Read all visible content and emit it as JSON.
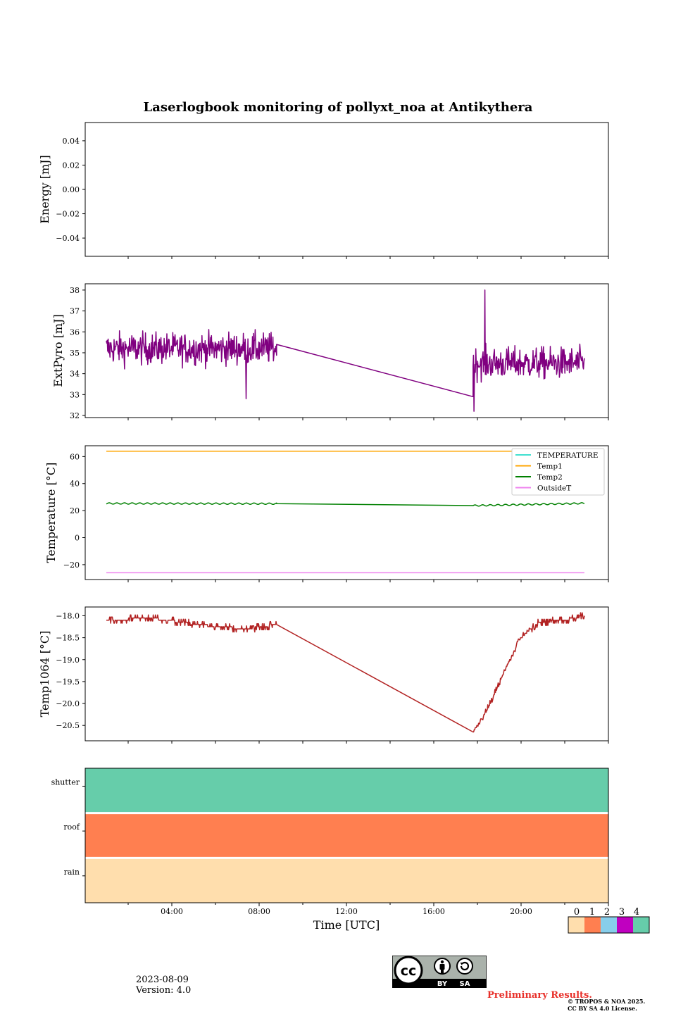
{
  "figure": {
    "title": "Laserlogbook monitoring of pollyxt_noa at Antikythera",
    "date": "2023-08-09",
    "version": "Version: 4.0",
    "preliminary": "Preliminary Results.",
    "copyright_line1": "© TROPOS & NOA 2025.",
    "copyright_line2": "CC BY SA 4.0 License.",
    "cc_logo": {
      "cc": "cc",
      "by": "BY",
      "sa": "SA"
    }
  },
  "chart_data": [
    {
      "id": "energy",
      "type": "line",
      "title": "Laserlogbook monitoring of pollyxt_noa at Antikythera",
      "ylabel": "Energy [mJ]",
      "xlabel": "",
      "ylim": [
        -0.055,
        0.055
      ],
      "yticks": [
        0.04,
        0.02,
        0.0,
        -0.02,
        -0.04
      ],
      "ytick_labels": [
        "0.04",
        "0.02",
        "0.00",
        "−0.02",
        "−0.04"
      ],
      "series": []
    },
    {
      "id": "extpyro",
      "type": "line",
      "ylabel": "ExtPyro [mJ]",
      "xlabel": "",
      "ylim": [
        31.9,
        38.3
      ],
      "yticks": [
        38,
        37,
        36,
        35,
        34,
        33,
        32
      ],
      "ytick_labels": [
        "38",
        "37",
        "36",
        "35",
        "34",
        "33",
        "32"
      ],
      "series": [
        {
          "color": "#800080",
          "segments": [
            {
              "x": [
                1.0,
                8.8
              ],
              "mean": 35.2,
              "amp": 0.8,
              "noise": true
            },
            {
              "x": [
                8.8,
                17.8
              ],
              "y": [
                35.4,
                32.9
              ],
              "noise": false
            },
            {
              "x": [
                17.8,
                22.9
              ],
              "mean": 34.5,
              "amp": 0.8,
              "noise": true
            }
          ],
          "peaks": [
            {
              "x": 18.35,
              "y": 38.0
            },
            {
              "x": 17.85,
              "y": 32.2
            },
            {
              "x": 7.4,
              "y": 32.8
            }
          ]
        }
      ]
    },
    {
      "id": "temperature",
      "type": "line",
      "ylabel": "Temperature [°C]",
      "xlabel": "",
      "ylim": [
        -31,
        68
      ],
      "yticks": [
        60,
        40,
        20,
        0,
        -20
      ],
      "ytick_labels": [
        "60",
        "40",
        "20",
        "0",
        "−20"
      ],
      "legend": {
        "placement": "upper-right"
      },
      "series": [
        {
          "name": "TEMPERATURE",
          "color": "#40e0d0",
          "x": [],
          "y": []
        },
        {
          "name": "Temp1",
          "color": "#ffa500",
          "x": [
            1.0,
            22.9
          ],
          "y": [
            64,
            64
          ]
        },
        {
          "name": "Temp2",
          "color": "#008000",
          "x": [
            1.0,
            8.8,
            17.8,
            22.9
          ],
          "y": [
            25.3,
            25.1,
            23.7,
            25.4
          ],
          "noise": true
        },
        {
          "name": "OutsideT",
          "color": "#ee82ee",
          "x": [
            1.0,
            22.9
          ],
          "y": [
            -26,
            -26
          ]
        }
      ]
    },
    {
      "id": "temp1064",
      "type": "line",
      "ylabel": "Temp1064 [°C]",
      "xlabel": "",
      "ylim": [
        -20.85,
        -17.8
      ],
      "yticks": [
        -18.0,
        -18.5,
        -19.0,
        -19.5,
        -20.0,
        -20.5
      ],
      "ytick_labels": [
        "−18.0",
        "−18.5",
        "−19.0",
        "−19.5",
        "−20.0",
        "−20.5"
      ],
      "series": [
        {
          "color": "#b22222",
          "points": [
            {
              "x": 1.0,
              "y": -18.1
            },
            {
              "x": 3.0,
              "y": -18.05
            },
            {
              "x": 4.5,
              "y": -18.15
            },
            {
              "x": 6.0,
              "y": -18.25
            },
            {
              "x": 7.5,
              "y": -18.3
            },
            {
              "x": 8.8,
              "y": -18.2
            },
            {
              "x": 17.8,
              "y": -20.65
            },
            {
              "x": 18.5,
              "y": -20.1
            },
            {
              "x": 19.3,
              "y": -19.2
            },
            {
              "x": 20.0,
              "y": -18.5
            },
            {
              "x": 20.8,
              "y": -18.15
            },
            {
              "x": 22.0,
              "y": -18.1
            },
            {
              "x": 22.9,
              "y": -18.0
            }
          ]
        }
      ]
    },
    {
      "id": "status",
      "type": "heatmap",
      "xlabel": "Time [UTC]",
      "ylabel": "",
      "rows": [
        "shutter",
        "roof",
        "rain"
      ],
      "row_values": [
        4,
        1,
        0
      ],
      "xlim": [
        0,
        24
      ],
      "xticks": [
        4,
        8,
        12,
        16,
        20
      ],
      "xtick_labels": [
        "04:00",
        "08:00",
        "12:00",
        "16:00",
        "20:00"
      ],
      "colorbar": {
        "ticks": [
          "0",
          "1",
          "2",
          "3",
          "4"
        ],
        "colors": [
          "#ffdead",
          "#ff7f50",
          "#87ceeb",
          "#c000c0",
          "#66cdaa"
        ]
      }
    }
  ]
}
